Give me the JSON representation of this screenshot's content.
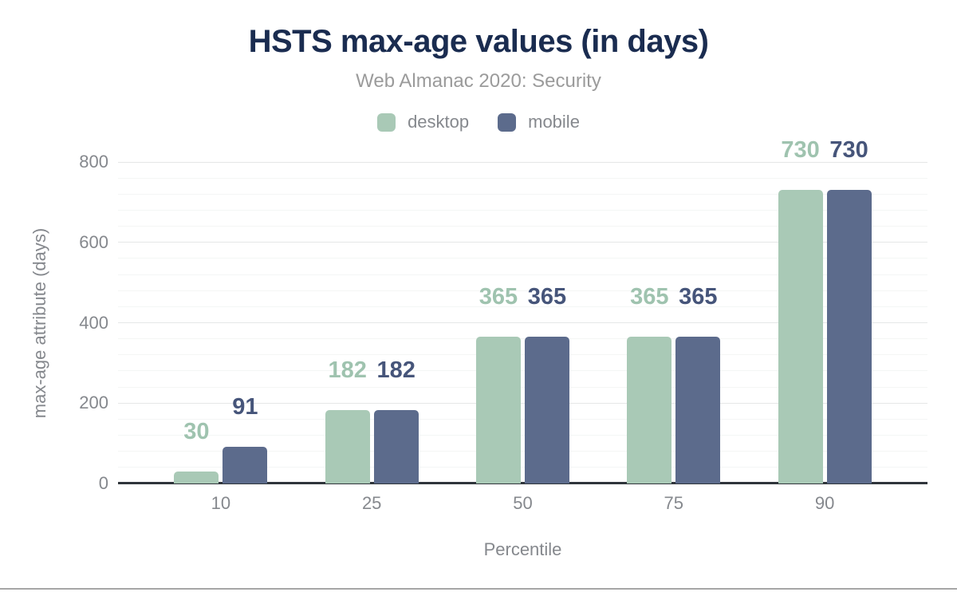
{
  "header": {
    "title": "HSTS max-age values (in days)",
    "subtitle": "Web Almanac 2020: Security"
  },
  "chart_data": {
    "type": "bar",
    "title": "HSTS max-age values (in days)",
    "subtitle": "Web Almanac 2020: Security",
    "categories": [
      "10",
      "25",
      "50",
      "75",
      "90"
    ],
    "series": [
      {
        "name": "desktop",
        "values": [
          30,
          182,
          365,
          365,
          730
        ]
      },
      {
        "name": "mobile",
        "values": [
          91,
          182,
          365,
          365,
          730
        ]
      }
    ],
    "xlabel": "Percentile",
    "ylabel": "max-age attribute (days)",
    "ylim": [
      0,
      800
    ],
    "yticks": [
      0,
      200,
      400,
      600,
      800
    ],
    "minor_grid_step": 40,
    "major_grid_step": 200,
    "grid": true,
    "legend_position": "top",
    "annotations": "values shown above each bar"
  },
  "colors": {
    "title": "#1a2c50",
    "subtitle": "#9b9b9b",
    "axis_text": "#85888d",
    "desktop_bar": "#a9c9b6",
    "desktop_annotation": "#9fc3af",
    "mobile_bar": "#5c6b8c",
    "mobile_annotation": "#46557a",
    "minor_gridline": "#f4f6f5",
    "major_gridline": "#e5e7e7",
    "baseline": "#30353b",
    "bottom_rule": "#a6a6a6"
  }
}
